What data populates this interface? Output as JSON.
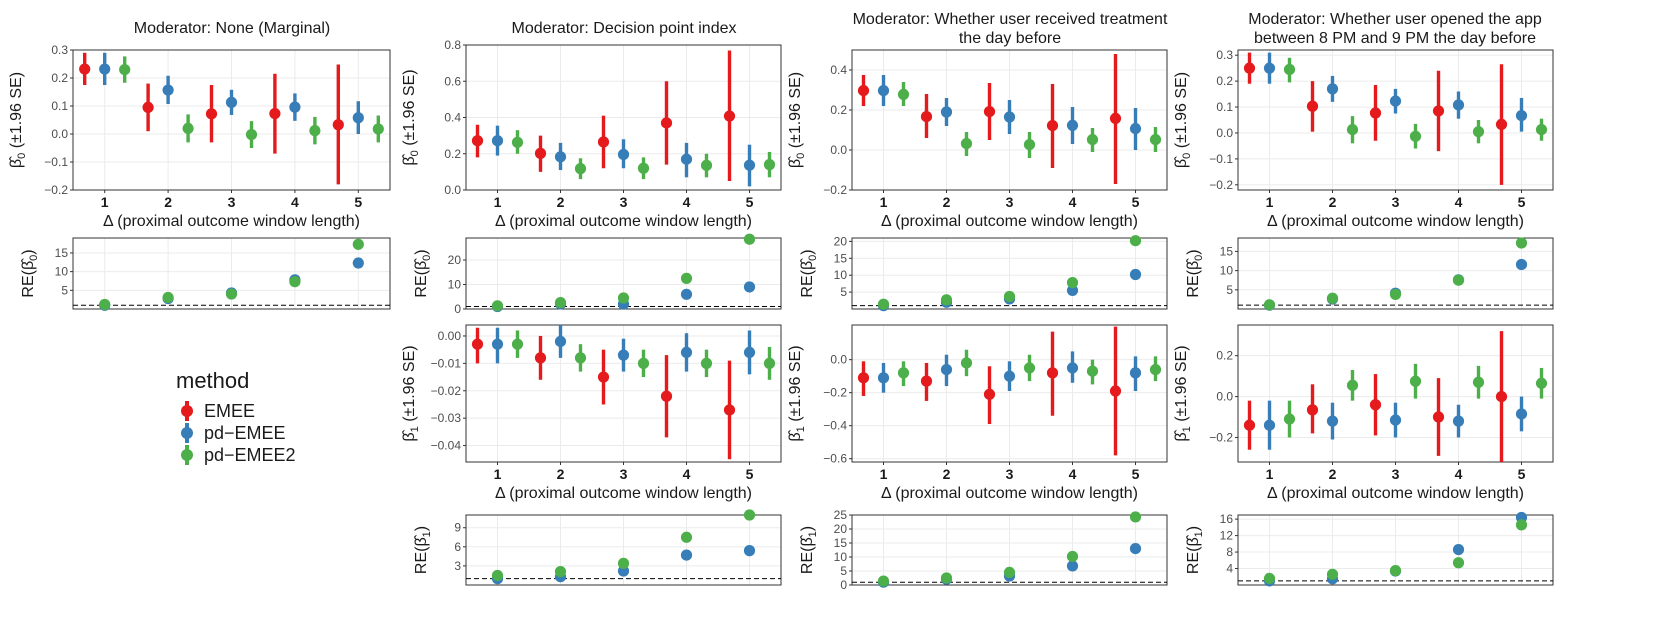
{
  "chart_data": [
    {
      "id": "p1",
      "type": "errorbar",
      "title": "Moderator: None (Marginal)",
      "param": "beta0",
      "xlabel": "Δ (proximal outcome window length)",
      "ylabel": "β̂0 (±1.96 SE)",
      "ylim": [
        -0.2,
        0.3
      ],
      "yticks": [
        -0.2,
        -0.1,
        0.0,
        0.1,
        0.2,
        0.3
      ],
      "ytick_labels": [
        "−0.2",
        "−0.1",
        "0.0",
        "0.1",
        "0.2",
        "0.3"
      ],
      "x": [
        1,
        2,
        3,
        4,
        5
      ],
      "series": [
        {
          "name": "EMEE",
          "est": [
            0.232,
            0.095,
            0.072,
            0.073,
            0.033
          ],
          "lo": [
            0.175,
            0.01,
            -0.03,
            -0.07,
            -0.18
          ],
          "hi": [
            0.29,
            0.18,
            0.175,
            0.215,
            0.248
          ]
        },
        {
          "name": "pd-EMEE",
          "est": [
            0.232,
            0.157,
            0.113,
            0.096,
            0.058
          ],
          "lo": [
            0.175,
            0.107,
            0.068,
            0.047,
            0.0
          ],
          "hi": [
            0.29,
            0.208,
            0.158,
            0.145,
            0.117
          ]
        },
        {
          "name": "pd-EMEE2",
          "est": [
            0.23,
            0.02,
            -0.002,
            0.012,
            0.018
          ],
          "lo": [
            0.183,
            -0.03,
            -0.05,
            -0.037,
            -0.03
          ],
          "hi": [
            0.277,
            0.07,
            0.046,
            0.061,
            0.066
          ]
        }
      ]
    },
    {
      "id": "p2",
      "type": "errorbar",
      "title": "Moderator: Decision point index",
      "param": "beta0",
      "xlabel": "Δ (proximal outcome window length)",
      "ylabel": "β̂0 (±1.96 SE)",
      "ylim": [
        0.0,
        0.8
      ],
      "yticks": [
        0.0,
        0.2,
        0.4,
        0.6,
        0.8
      ],
      "ytick_labels": [
        "0.0",
        "0.2",
        "0.4",
        "0.6",
        "0.8"
      ],
      "x": [
        1,
        2,
        3,
        4,
        5
      ],
      "series": [
        {
          "name": "EMEE",
          "est": [
            0.272,
            0.202,
            0.265,
            0.37,
            0.408
          ],
          "lo": [
            0.18,
            0.1,
            0.12,
            0.14,
            0.05
          ],
          "hi": [
            0.36,
            0.3,
            0.41,
            0.6,
            0.77
          ]
        },
        {
          "name": "pd-EMEE",
          "est": [
            0.272,
            0.183,
            0.196,
            0.17,
            0.137
          ],
          "lo": [
            0.19,
            0.11,
            0.12,
            0.07,
            0.02
          ],
          "hi": [
            0.355,
            0.26,
            0.28,
            0.26,
            0.25
          ]
        },
        {
          "name": "pd-EMEE2",
          "est": [
            0.263,
            0.118,
            0.12,
            0.136,
            0.14
          ],
          "lo": [
            0.2,
            0.06,
            0.06,
            0.07,
            0.07
          ],
          "hi": [
            0.33,
            0.175,
            0.18,
            0.2,
            0.21
          ]
        }
      ]
    },
    {
      "id": "p3",
      "type": "errorbar",
      "title": "Moderator: Whether user received treatment\nthe day before",
      "param": "beta0",
      "xlabel": "Δ (proximal outcome window length)",
      "ylabel": "β̂0 (±1.96 SE)",
      "ylim": [
        -0.2,
        0.5
      ],
      "yticks": [
        -0.2,
        0.0,
        0.2,
        0.4
      ],
      "ytick_labels": [
        "−0.2",
        "0.0",
        "0.2",
        "0.4"
      ],
      "x": [
        1,
        2,
        3,
        4,
        5
      ],
      "series": [
        {
          "name": "EMEE",
          "est": [
            0.297,
            0.167,
            0.192,
            0.122,
            0.158
          ],
          "lo": [
            0.22,
            0.06,
            0.05,
            -0.09,
            -0.17
          ],
          "hi": [
            0.375,
            0.28,
            0.335,
            0.33,
            0.48
          ]
        },
        {
          "name": "pd-EMEE",
          "est": [
            0.297,
            0.19,
            0.165,
            0.123,
            0.107
          ],
          "lo": [
            0.22,
            0.12,
            0.08,
            0.03,
            0.0
          ],
          "hi": [
            0.375,
            0.26,
            0.25,
            0.215,
            0.21
          ]
        },
        {
          "name": "pd-EMEE2",
          "est": [
            0.278,
            0.032,
            0.027,
            0.052,
            0.052
          ],
          "lo": [
            0.22,
            -0.03,
            -0.04,
            -0.01,
            -0.01
          ],
          "hi": [
            0.34,
            0.09,
            0.09,
            0.11,
            0.115
          ]
        }
      ]
    },
    {
      "id": "p4",
      "type": "errorbar",
      "title": "Moderator: Whether user opened the app\nbetween 8 PM and 9 PM the day before",
      "param": "beta0",
      "xlabel": "Δ (proximal outcome window length)",
      "ylabel": "β̂0 (±1.96 SE)",
      "ylim": [
        -0.22,
        0.32
      ],
      "yticks": [
        -0.2,
        -0.1,
        0.0,
        0.1,
        0.2,
        0.3
      ],
      "ytick_labels": [
        "−0.2",
        "−0.1",
        "0.0",
        "0.1",
        "0.2",
        "0.3"
      ],
      "x": [
        1,
        2,
        3,
        4,
        5
      ],
      "series": [
        {
          "name": "EMEE",
          "est": [
            0.25,
            0.103,
            0.077,
            0.085,
            0.033
          ],
          "lo": [
            0.19,
            0.005,
            -0.03,
            -0.07,
            -0.2
          ],
          "hi": [
            0.31,
            0.2,
            0.185,
            0.24,
            0.265
          ]
        },
        {
          "name": "pd-EMEE",
          "est": [
            0.25,
            0.17,
            0.123,
            0.108,
            0.067
          ],
          "lo": [
            0.19,
            0.12,
            0.075,
            0.055,
            0.005
          ],
          "hi": [
            0.31,
            0.22,
            0.17,
            0.16,
            0.135
          ]
        },
        {
          "name": "pd-EMEE2",
          "est": [
            0.245,
            0.013,
            -0.013,
            0.005,
            0.013
          ],
          "lo": [
            0.195,
            -0.04,
            -0.06,
            -0.04,
            -0.03
          ],
          "hi": [
            0.29,
            0.065,
            0.035,
            0.05,
            0.055
          ]
        }
      ]
    },
    {
      "id": "r1",
      "type": "scatter",
      "param": "RE(beta0)",
      "ylabel": "RE(β̂0)",
      "ylim": [
        0,
        19
      ],
      "yticks": [
        5,
        10,
        15
      ],
      "ytick_labels": [
        "5",
        "10",
        "15"
      ],
      "refline": 1,
      "x": [
        1,
        2,
        3,
        4,
        5
      ],
      "series": [
        {
          "name": "pd-EMEE",
          "values": [
            1.0,
            2.8,
            4.3,
            7.8,
            12.3
          ]
        },
        {
          "name": "pd-EMEE2",
          "values": [
            1.2,
            3.1,
            4.0,
            7.3,
            17.3
          ]
        }
      ]
    },
    {
      "id": "r2",
      "type": "scatter",
      "param": "RE(beta0)",
      "ylabel": "RE(β̂0)",
      "ylim": [
        0,
        29
      ],
      "yticks": [
        0,
        10,
        20
      ],
      "ytick_labels": [
        "0",
        "10",
        "20"
      ],
      "refline": 1,
      "x": [
        1,
        2,
        3,
        4,
        5
      ],
      "series": [
        {
          "name": "pd-EMEE",
          "values": [
            1.0,
            2.1,
            2.0,
            6.0,
            9.0
          ]
        },
        {
          "name": "pd-EMEE2",
          "values": [
            1.3,
            2.6,
            4.5,
            12.5,
            28.5
          ]
        }
      ]
    },
    {
      "id": "r3",
      "type": "scatter",
      "param": "RE(beta0)",
      "ylabel": "RE(β̂0)",
      "ylim": [
        0,
        21
      ],
      "yticks": [
        5,
        10,
        15,
        20
      ],
      "ytick_labels": [
        "5",
        "10",
        "15",
        "20"
      ],
      "refline": 1,
      "x": [
        1,
        2,
        3,
        4,
        5
      ],
      "series": [
        {
          "name": "pd-EMEE",
          "values": [
            1.0,
            2.0,
            3.0,
            5.5,
            10.2
          ]
        },
        {
          "name": "pd-EMEE2",
          "values": [
            1.4,
            2.7,
            3.7,
            7.8,
            20.2
          ]
        }
      ]
    },
    {
      "id": "r4",
      "type": "scatter",
      "param": "RE(beta0)",
      "ylabel": "RE(β̂0)",
      "ylim": [
        0,
        18.5
      ],
      "yticks": [
        5,
        10,
        15
      ],
      "ytick_labels": [
        "5",
        "10",
        "15"
      ],
      "refline": 1,
      "x": [
        1,
        2,
        3,
        4,
        5
      ],
      "series": [
        {
          "name": "pd-EMEE",
          "values": [
            1.0,
            2.6,
            4.1,
            7.6,
            11.6
          ]
        },
        {
          "name": "pd-EMEE2",
          "values": [
            1.1,
            2.8,
            3.8,
            7.5,
            17.2
          ]
        }
      ]
    },
    {
      "id": "b2",
      "type": "errorbar",
      "param": "beta1",
      "xlabel": "Δ (proximal outcome window length)",
      "ylabel": "β̂1 (±1.96 SE)",
      "ylim": [
        -0.046,
        0.004
      ],
      "yticks": [
        0.0,
        -0.01,
        -0.02,
        -0.03,
        -0.04
      ],
      "ytick_labels": [
        "0.00",
        "−0.01",
        "−0.02",
        "−0.03",
        "−0.04"
      ],
      "x": [
        1,
        2,
        3,
        4,
        5
      ],
      "series": [
        {
          "name": "EMEE",
          "est": [
            -0.003,
            -0.008,
            -0.015,
            -0.022,
            -0.027
          ],
          "lo": [
            -0.01,
            -0.016,
            -0.025,
            -0.037,
            -0.045
          ],
          "hi": [
            0.003,
            0.0,
            -0.005,
            -0.007,
            -0.009
          ]
        },
        {
          "name": "pd-EMEE",
          "est": [
            -0.003,
            -0.002,
            -0.007,
            -0.006,
            -0.006
          ],
          "lo": [
            -0.01,
            -0.008,
            -0.013,
            -0.013,
            -0.014
          ],
          "hi": [
            0.003,
            0.004,
            -0.001,
            0.001,
            0.002
          ]
        },
        {
          "name": "pd-EMEE2",
          "est": [
            -0.003,
            -0.008,
            -0.01,
            -0.01,
            -0.01
          ],
          "lo": [
            -0.008,
            -0.013,
            -0.015,
            -0.015,
            -0.016
          ],
          "hi": [
            0.002,
            -0.003,
            -0.005,
            -0.005,
            -0.004
          ]
        }
      ]
    },
    {
      "id": "b3",
      "type": "errorbar",
      "param": "beta1",
      "xlabel": "Δ (proximal outcome window length)",
      "ylabel": "β̂1 (±1.96 SE)",
      "ylim": [
        -0.62,
        0.21
      ],
      "yticks": [
        0.0,
        -0.2,
        -0.4,
        -0.6
      ],
      "ytick_labels": [
        "0.0",
        "−0.2",
        "−0.4",
        "−0.6"
      ],
      "x": [
        1,
        2,
        3,
        4,
        5
      ],
      "series": [
        {
          "name": "EMEE",
          "est": [
            -0.11,
            -0.13,
            -0.21,
            -0.08,
            -0.19
          ],
          "lo": [
            -0.22,
            -0.25,
            -0.39,
            -0.34,
            -0.58
          ],
          "hi": [
            -0.01,
            -0.02,
            -0.04,
            0.17,
            0.2
          ]
        },
        {
          "name": "pd-EMEE",
          "est": [
            -0.11,
            -0.06,
            -0.1,
            -0.05,
            -0.08
          ],
          "lo": [
            -0.2,
            -0.16,
            -0.19,
            -0.14,
            -0.19
          ],
          "hi": [
            -0.02,
            0.03,
            -0.01,
            0.05,
            0.02
          ]
        },
        {
          "name": "pd-EMEE2",
          "est": [
            -0.08,
            -0.02,
            -0.05,
            -0.07,
            -0.06
          ],
          "lo": [
            -0.16,
            -0.1,
            -0.13,
            -0.15,
            -0.13
          ],
          "hi": [
            -0.01,
            0.06,
            0.03,
            0.0,
            0.02
          ]
        }
      ]
    },
    {
      "id": "b4",
      "type": "errorbar",
      "param": "beta1",
      "xlabel": "Δ (proximal outcome window length)",
      "ylabel": "β̂1 (±1.96 SE)",
      "ylim": [
        -0.32,
        0.35
      ],
      "yticks": [
        0.2,
        0.0,
        -0.2
      ],
      "ytick_labels": [
        "0.2",
        "0.0",
        "−0.2"
      ],
      "x": [
        1,
        2,
        3,
        4,
        5
      ],
      "series": [
        {
          "name": "EMEE",
          "est": [
            -0.14,
            -0.065,
            -0.04,
            -0.1,
            0.0
          ],
          "lo": [
            -0.26,
            -0.18,
            -0.19,
            -0.29,
            -0.32
          ],
          "hi": [
            -0.02,
            0.06,
            0.11,
            0.09,
            0.32
          ]
        },
        {
          "name": "pd-EMEE",
          "est": [
            -0.14,
            -0.12,
            -0.115,
            -0.12,
            -0.085
          ],
          "lo": [
            -0.26,
            -0.21,
            -0.2,
            -0.2,
            -0.17
          ],
          "hi": [
            -0.02,
            -0.03,
            -0.03,
            -0.04,
            0.0
          ]
        },
        {
          "name": "pd-EMEE2",
          "est": [
            -0.11,
            0.055,
            0.075,
            0.07,
            0.065
          ],
          "lo": [
            -0.2,
            -0.02,
            -0.01,
            -0.01,
            -0.01
          ],
          "hi": [
            -0.02,
            0.13,
            0.16,
            0.15,
            0.14
          ]
        }
      ]
    },
    {
      "id": "s2",
      "type": "scatter",
      "param": "RE(beta1)",
      "ylabel": "RE(β̂1)",
      "ylim": [
        0,
        11
      ],
      "yticks": [
        3,
        6,
        9
      ],
      "ytick_labels": [
        "3",
        "6",
        "9"
      ],
      "refline": 1,
      "x": [
        1,
        2,
        3,
        4,
        5
      ],
      "series": [
        {
          "name": "pd-EMEE",
          "values": [
            1.0,
            1.3,
            2.2,
            4.7,
            5.4
          ]
        },
        {
          "name": "pd-EMEE2",
          "values": [
            1.5,
            2.1,
            3.4,
            7.5,
            11.0
          ]
        }
      ]
    },
    {
      "id": "s3",
      "type": "scatter",
      "param": "RE(beta1)",
      "ylabel": "RE(β̂1)",
      "ylim": [
        0,
        25
      ],
      "yticks": [
        0,
        5,
        10,
        15,
        20,
        25
      ],
      "ytick_labels": [
        "0",
        "5",
        "10",
        "15",
        "20",
        "25"
      ],
      "refline": 1,
      "x": [
        1,
        2,
        3,
        4,
        5
      ],
      "series": [
        {
          "name": "pd-EMEE",
          "values": [
            1.0,
            2.1,
            3.2,
            6.8,
            13.0
          ]
        },
        {
          "name": "pd-EMEE2",
          "values": [
            1.4,
            2.5,
            4.5,
            10.2,
            24.3
          ]
        }
      ]
    },
    {
      "id": "s4",
      "type": "scatter",
      "param": "RE(beta1)",
      "ylabel": "RE(β̂1)",
      "ylim": [
        0,
        17
      ],
      "yticks": [
        4,
        8,
        12,
        16
      ],
      "ytick_labels": [
        "4",
        "8",
        "12",
        "16"
      ],
      "refline": 1,
      "x": [
        1,
        2,
        3,
        4,
        5
      ],
      "series": [
        {
          "name": "pd-EMEE",
          "values": [
            1.0,
            1.5,
            3.4,
            8.6,
            16.4
          ]
        },
        {
          "name": "pd-EMEE2",
          "values": [
            1.6,
            2.6,
            3.5,
            5.4,
            14.6
          ]
        }
      ]
    }
  ],
  "legend": {
    "title": "method",
    "items": [
      {
        "name": "EMEE",
        "color": "#e41a1c"
      },
      {
        "name": "pd−EMEE",
        "color": "#377eb8"
      },
      {
        "name": "pd−EMEE2",
        "color": "#4daf4a"
      }
    ]
  },
  "colors": {
    "EMEE": "#e41a1c",
    "pd-EMEE": "#377eb8",
    "pd-EMEE2": "#4daf4a"
  }
}
